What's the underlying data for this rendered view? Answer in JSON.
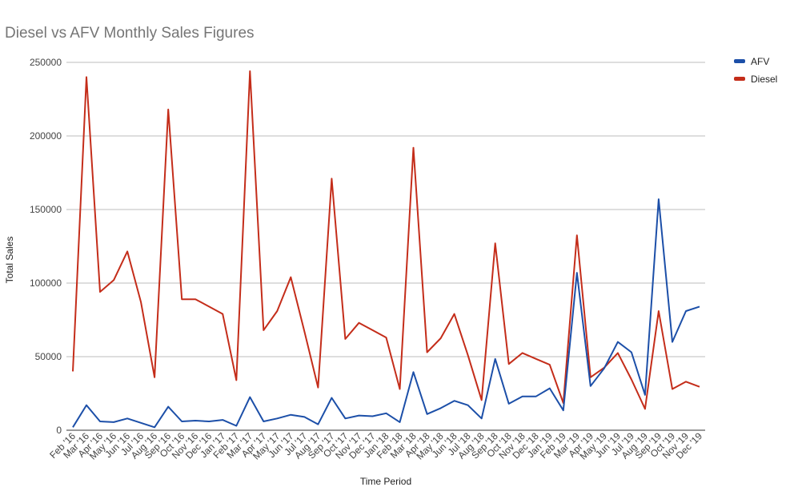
{
  "chart_data": {
    "type": "line",
    "title": "Diesel vs AFV Monthly Sales Figures",
    "xlabel": "Time Period",
    "ylabel": "Total Sales",
    "ylim": [
      0,
      250000
    ],
    "yticks": [
      "0",
      "50000",
      "100000",
      "150000",
      "200000",
      "250000"
    ],
    "grid": true,
    "legend_position": "top-right",
    "categories": [
      "Feb '16",
      "Mar '16",
      "Apr '16",
      "May '16",
      "Jun '16",
      "Jul '16",
      "Aug '16",
      "Sep '16",
      "Oct '16",
      "Nov '16",
      "Dec '16",
      "Jan '17",
      "Feb '17",
      "Mar '17",
      "Apr '17",
      "May '17",
      "Jun '17",
      "Jul '17",
      "Aug '17",
      "Sep '17",
      "Oct '17",
      "Nov '17",
      "Dec '17",
      "Jan '18",
      "Feb '18",
      "Mar '18",
      "Apr '18",
      "May '18",
      "Jun '18",
      "Jul '18",
      "Aug '18",
      "Sep '18",
      "Oct '18",
      "Nov '18",
      "Dec '18",
      "Jan '19",
      "Feb '19",
      "Mar '19",
      "Apr '19",
      "May '19",
      "Jun '19",
      "Jul '19",
      "Aug '19",
      "Sep '19",
      "Oct '19",
      "Nov '19",
      "Dec '19"
    ],
    "series": [
      {
        "name": "AFV",
        "color": "#1c4fa8",
        "values": [
          2000,
          17000,
          6000,
          5500,
          8000,
          5000,
          2000,
          16000,
          6000,
          6500,
          6000,
          7000,
          3000,
          22500,
          6000,
          8000,
          10500,
          9000,
          4000,
          22000,
          8000,
          10000,
          9500,
          11500,
          5500,
          39500,
          11000,
          15000,
          20000,
          17000,
          8000,
          48500,
          18000,
          23000,
          23000,
          28500,
          13500,
          107000,
          30000,
          42000,
          60000,
          53000,
          24000,
          157000,
          60000,
          81000,
          84000
        ]
      },
      {
        "name": "Diesel",
        "color": "#c42d1a",
        "values": [
          40000,
          240000,
          94000,
          102000,
          121500,
          87000,
          36000,
          218000,
          89000,
          89000,
          84000,
          79000,
          34000,
          244000,
          68000,
          81000,
          104000,
          67000,
          29000,
          171000,
          62000,
          73000,
          68000,
          63000,
          28000,
          192000,
          53000,
          62500,
          79000,
          51000,
          20500,
          127000,
          45000,
          52500,
          48500,
          44500,
          18500,
          132500,
          36000,
          42500,
          52500,
          34500,
          14500,
          81000,
          28000,
          33000,
          29500
        ]
      }
    ]
  }
}
